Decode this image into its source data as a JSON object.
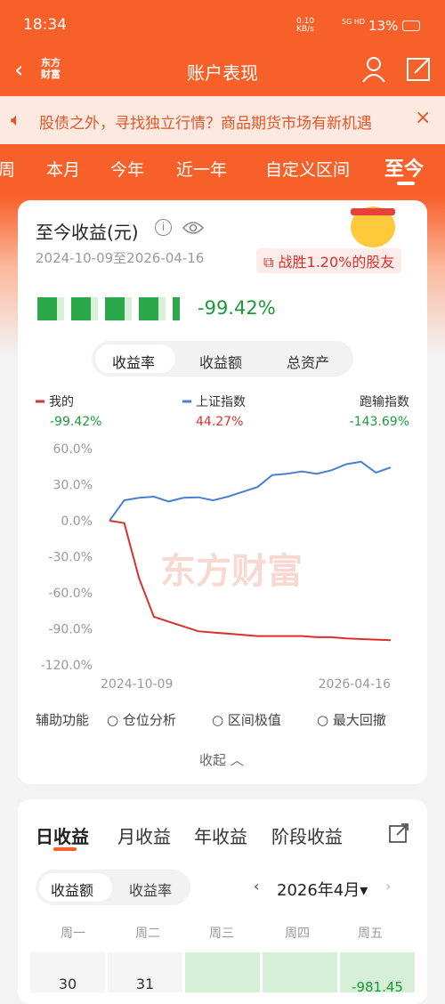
{
  "status_bar": {
    "time": "18:34",
    "speed": "0.10",
    "speed_unit": "KB/s",
    "network": "5G HD",
    "battery": "13%"
  },
  "nav": {
    "logo": "东方财富",
    "title": "账户表现"
  },
  "banner": {
    "text": "股债之外，寻找独立行情？商品期货市场有新机遇"
  },
  "period_tabs": [
    "周",
    "本月",
    "今年",
    "近一年",
    "自定义区间",
    "至今"
  ],
  "summary": {
    "title": "至今收益(元)",
    "date_range": "2024-10-09至2026-04-16",
    "rank_badge": "战胜1.20%的股友",
    "return_pct": "-99.42%"
  },
  "view_tabs": [
    "收益率",
    "收益额",
    "总资产"
  ],
  "chart_data": {
    "type": "line",
    "watermark": "东方财富",
    "categories": [
      "2024-10-09",
      null,
      null,
      null,
      null,
      null,
      null,
      null,
      null,
      null,
      null,
      null,
      null,
      null,
      null,
      null,
      null,
      null,
      null,
      "2026-04-16"
    ],
    "series": [
      {
        "name": "我的",
        "color": "#d9302c",
        "legend_value": "-99.42%",
        "values": [
          0,
          -2,
          -48,
          -80,
          -84,
          -88,
          -92,
          -93,
          -94,
          -95,
          -96,
          -96,
          -96,
          -96,
          -97,
          -97,
          -98,
          -98.5,
          -99,
          -99.42
        ]
      },
      {
        "name": "上证指数",
        "color": "#4a7fd0",
        "legend_value": "44.27%",
        "values": [
          0,
          17,
          19,
          20,
          16,
          19,
          19.5,
          17,
          20,
          24,
          28,
          38,
          39,
          41,
          39,
          42,
          47,
          49,
          40,
          44.27
        ]
      }
    ],
    "excess": {
      "name": "跑输指数",
      "value": "-143.69%"
    },
    "ylim": [
      -120,
      60
    ],
    "yticks": [
      {
        "value": 60,
        "label": "60.0%"
      },
      {
        "value": 30,
        "label": "30.0%"
      },
      {
        "value": 0,
        "label": "0.0%"
      },
      {
        "value": -30,
        "label": "-30.0%"
      },
      {
        "value": -60,
        "label": "-60.0%"
      },
      {
        "value": -90,
        "label": "-90.0%"
      },
      {
        "value": -120,
        "label": "-120.0%"
      }
    ],
    "grid": false
  },
  "aux": {
    "label": "辅助功能",
    "options": [
      "仓位分析",
      "区间极值",
      "最大回撤"
    ],
    "collapse": "收起"
  },
  "daily": {
    "tabs": [
      "日收益",
      "月收益",
      "年收益",
      "阶段收益"
    ],
    "modes": [
      "收益额",
      "收益率"
    ],
    "month": "2026年4月",
    "weekdays": [
      "周一",
      "周二",
      "周三",
      "周四",
      "周五"
    ],
    "cells": [
      "30",
      "31"
    ],
    "friday_value": "-981.45"
  }
}
